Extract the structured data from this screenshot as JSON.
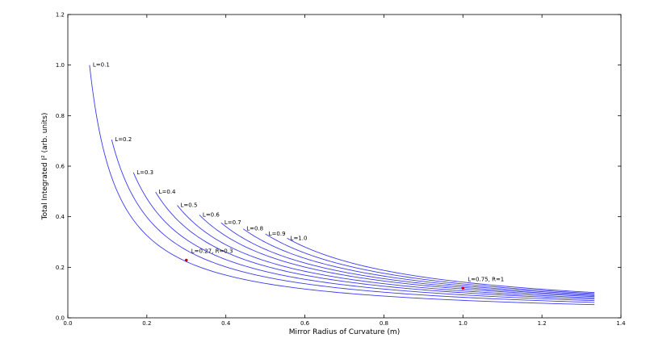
{
  "chart_data": {
    "type": "line",
    "xlabel": "Mirror Radius of Curvature (m)",
    "ylabel": "Total Integrated I² (arb. units)",
    "xlim": [
      0.0,
      1.4
    ],
    "ylim": [
      0.0,
      1.2
    ],
    "xticks": [
      "0.0",
      "0.2",
      "0.4",
      "0.6",
      "0.8",
      "1.0",
      "1.2",
      "1.4"
    ],
    "yticks": [
      "0.0",
      "0.2",
      "0.4",
      "0.6",
      "0.8",
      "1.0",
      "1.2"
    ],
    "grid": false,
    "series_color": "#3b3bf0",
    "x_end": 1.333,
    "series": [
      {
        "name": "L=0.1",
        "label": "L=0.1",
        "x_start": 0.055,
        "y_start": 1.0,
        "y_end": 0.052
      },
      {
        "name": "L=0.2",
        "label": "L=0.2",
        "x_start": 0.111,
        "y_start": 0.705,
        "y_end": 0.061
      },
      {
        "name": "L=0.3",
        "label": "L=0.3",
        "x_start": 0.166,
        "y_start": 0.575,
        "y_end": 0.068
      },
      {
        "name": "L=0.4",
        "label": "L=0.4",
        "x_start": 0.222,
        "y_start": 0.498,
        "y_end": 0.074
      },
      {
        "name": "L=0.5",
        "label": "L=0.5",
        "x_start": 0.277,
        "y_start": 0.445,
        "y_end": 0.079
      },
      {
        "name": "L=0.6",
        "label": "L=0.6",
        "x_start": 0.333,
        "y_start": 0.407,
        "y_end": 0.084
      },
      {
        "name": "L=0.7",
        "label": "L=0.7",
        "x_start": 0.388,
        "y_start": 0.376,
        "y_end": 0.088
      },
      {
        "name": "L=0.8",
        "label": "L=0.8",
        "x_start": 0.444,
        "y_start": 0.352,
        "y_end": 0.092
      },
      {
        "name": "L=0.9",
        "label": "L=0.9",
        "x_start": 0.5,
        "y_start": 0.332,
        "y_end": 0.096
      },
      {
        "name": "L=1.0",
        "label": "L=1.0",
        "x_start": 0.555,
        "y_start": 0.315,
        "y_end": 0.1
      }
    ],
    "points": [
      {
        "label": "L=0.27, R=0.3",
        "x": 0.3,
        "y": 0.228
      },
      {
        "label": "L=0.75, R=1",
        "x": 1.0,
        "y": 0.117
      }
    ],
    "point_color": "#cc0000"
  }
}
